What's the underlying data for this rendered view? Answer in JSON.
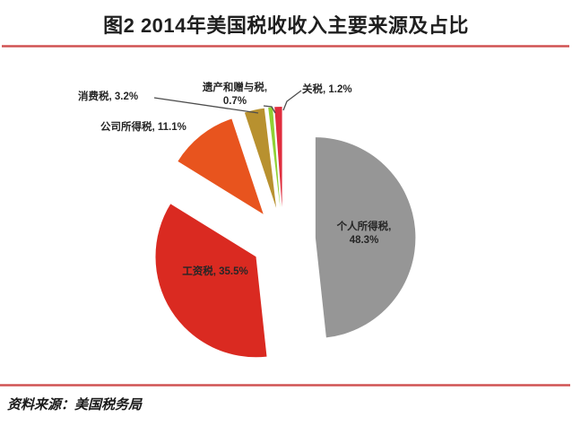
{
  "chart_data": {
    "type": "pie",
    "title": "图2  2014年美国税收收入主要来源及占比",
    "categories": [
      "个人所得税",
      "工资税",
      "公司所得税",
      "消费税",
      "遗产和赠与税",
      "关税"
    ],
    "values": [
      48.3,
      35.5,
      11.1,
      3.2,
      0.7,
      1.2
    ],
    "colors": [
      "#969696",
      "#DA2A21",
      "#E8541E",
      "#B8912F",
      "#8FD033",
      "#E02E3E"
    ],
    "slice_names": [
      "personal-income-tax",
      "payroll-tax",
      "corporate-income-tax",
      "consumption-tax",
      "estate-gift-tax",
      "tariff"
    ],
    "start_angle_deg": 0,
    "direction": "clockwise",
    "exploded": true,
    "legend": "none",
    "labels": [
      {
        "line1": "个人所得税,",
        "line2": "48.3%"
      },
      {
        "line1": "工资税, 35.5%"
      },
      {
        "line1": "公司所得税, 11.1%"
      },
      {
        "line1": "消费税, 3.2%"
      },
      {
        "line1": "遗产和赠与税,",
        "line2": "0.7%"
      },
      {
        "line1": "关税, 1.2%"
      }
    ]
  },
  "footer": {
    "source": "资料来源：美国税务局"
  }
}
